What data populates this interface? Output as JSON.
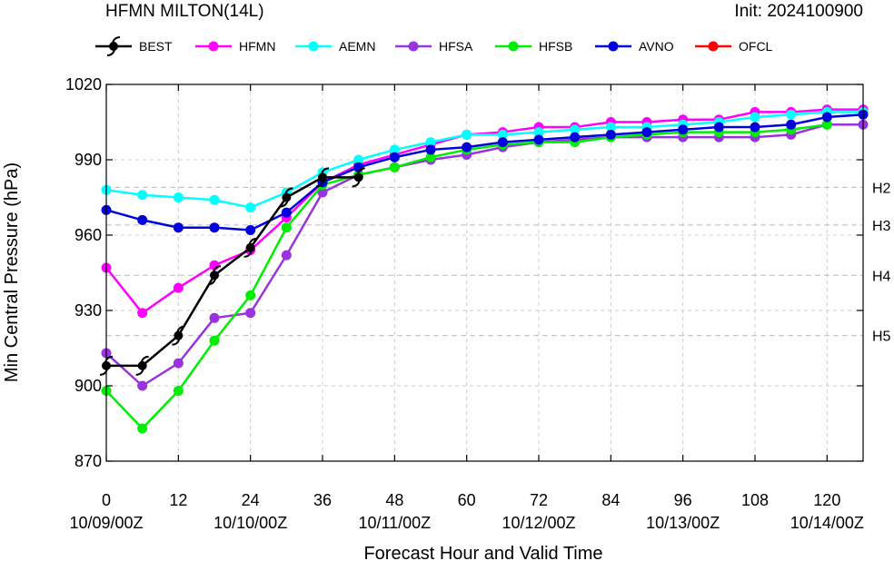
{
  "chart_data": {
    "type": "line",
    "title": "HFMN MILTON(14L)",
    "init_label": "Init: 2024100900",
    "xlabel": "Forecast Hour and Valid Time",
    "ylabel": "Min Central Pressure (hPa)",
    "xlim": [
      0,
      126
    ],
    "ylim": [
      870,
      1020
    ],
    "xticks": [
      0,
      12,
      24,
      36,
      48,
      60,
      72,
      84,
      96,
      108,
      120
    ],
    "xtick_labels": [
      "0",
      "12",
      "24",
      "36",
      "48",
      "60",
      "72",
      "84",
      "96",
      "108",
      "120"
    ],
    "date_ticks": [
      {
        "x": 0,
        "label": "10/09/00Z"
      },
      {
        "x": 24,
        "label": "10/10/00Z"
      },
      {
        "x": 48,
        "label": "10/11/00Z"
      },
      {
        "x": 72,
        "label": "10/12/00Z"
      },
      {
        "x": 96,
        "label": "10/13/00Z"
      },
      {
        "x": 120,
        "label": "10/14/00Z"
      }
    ],
    "yticks": [
      870,
      900,
      930,
      960,
      990,
      1020
    ],
    "ytick_labels": [
      "870",
      "900",
      "930",
      "960",
      "990",
      "1020"
    ],
    "grid": true,
    "legend_position": "top",
    "thresholds": [
      {
        "label": "H2",
        "value": 979
      },
      {
        "label": "H3",
        "value": 964
      },
      {
        "label": "H4",
        "value": 944
      },
      {
        "label": "H5",
        "value": 920
      }
    ],
    "series": [
      {
        "name": "BEST",
        "color": "#000000",
        "marker": "hurricane",
        "x": [
          0,
          6,
          12,
          18,
          24,
          30,
          36,
          42
        ],
        "y": [
          908,
          908,
          920,
          944,
          955,
          975,
          983,
          983
        ]
      },
      {
        "name": "HFMN",
        "color": "#ff00ff",
        "marker": "circle",
        "x": [
          0,
          6,
          12,
          18,
          24,
          30,
          36,
          42,
          48,
          54,
          60,
          66,
          72,
          78,
          84,
          90,
          96,
          102,
          108,
          114,
          120,
          126
        ],
        "y": [
          947,
          929,
          939,
          948,
          954,
          967,
          981,
          988,
          992,
          996,
          1000,
          1001,
          1003,
          1003,
          1005,
          1005,
          1006,
          1006,
          1009,
          1009,
          1010,
          1010
        ]
      },
      {
        "name": "AEMN",
        "color": "#00ffff",
        "marker": "circle",
        "x": [
          0,
          6,
          12,
          18,
          24,
          30,
          36,
          42,
          48,
          54,
          60,
          66,
          72,
          78,
          84,
          90,
          96,
          102,
          108,
          114,
          120,
          126
        ],
        "y": [
          978,
          976,
          975,
          974,
          971,
          977,
          985,
          990,
          994,
          997,
          1000,
          1000,
          1001,
          1002,
          1003,
          1003,
          1004,
          1005,
          1007,
          1008,
          1009,
          1009
        ]
      },
      {
        "name": "HFSA",
        "color": "#9933dd",
        "marker": "circle",
        "x": [
          0,
          6,
          12,
          18,
          24,
          30,
          36,
          42,
          48,
          54,
          60,
          66,
          72,
          78,
          84,
          90,
          96,
          102,
          108,
          114,
          120,
          126
        ],
        "y": [
          913,
          900,
          909,
          927,
          929,
          952,
          977,
          984,
          987,
          990,
          992,
          995,
          997,
          998,
          999,
          999,
          999,
          999,
          999,
          1000,
          1004,
          1004
        ]
      },
      {
        "name": "HFSB",
        "color": "#00ee00",
        "marker": "circle",
        "x": [
          0,
          6,
          12,
          18,
          24,
          30,
          36,
          42,
          48,
          54,
          60,
          66,
          72,
          78,
          84,
          90,
          96,
          102,
          108,
          114,
          120
        ],
        "y": [
          898,
          883,
          898,
          918,
          936,
          963,
          980,
          984,
          987,
          991,
          994,
          996,
          997,
          997,
          999,
          1000,
          1001,
          1001,
          1001,
          1002,
          1004
        ]
      },
      {
        "name": "AVNO",
        "color": "#0000dd",
        "marker": "circle",
        "x": [
          0,
          6,
          12,
          18,
          24,
          30,
          36,
          42,
          48,
          54,
          60,
          66,
          72,
          78,
          84,
          90,
          96,
          102,
          108,
          114,
          120,
          126
        ],
        "y": [
          970,
          966,
          963,
          963,
          962,
          969,
          981,
          987,
          991,
          994,
          995,
          997,
          998,
          999,
          1000,
          1001,
          1002,
          1003,
          1003,
          1004,
          1007,
          1008
        ]
      },
      {
        "name": "OFCL",
        "color": "#ff0000",
        "marker": "circle",
        "x": [],
        "y": []
      }
    ]
  }
}
